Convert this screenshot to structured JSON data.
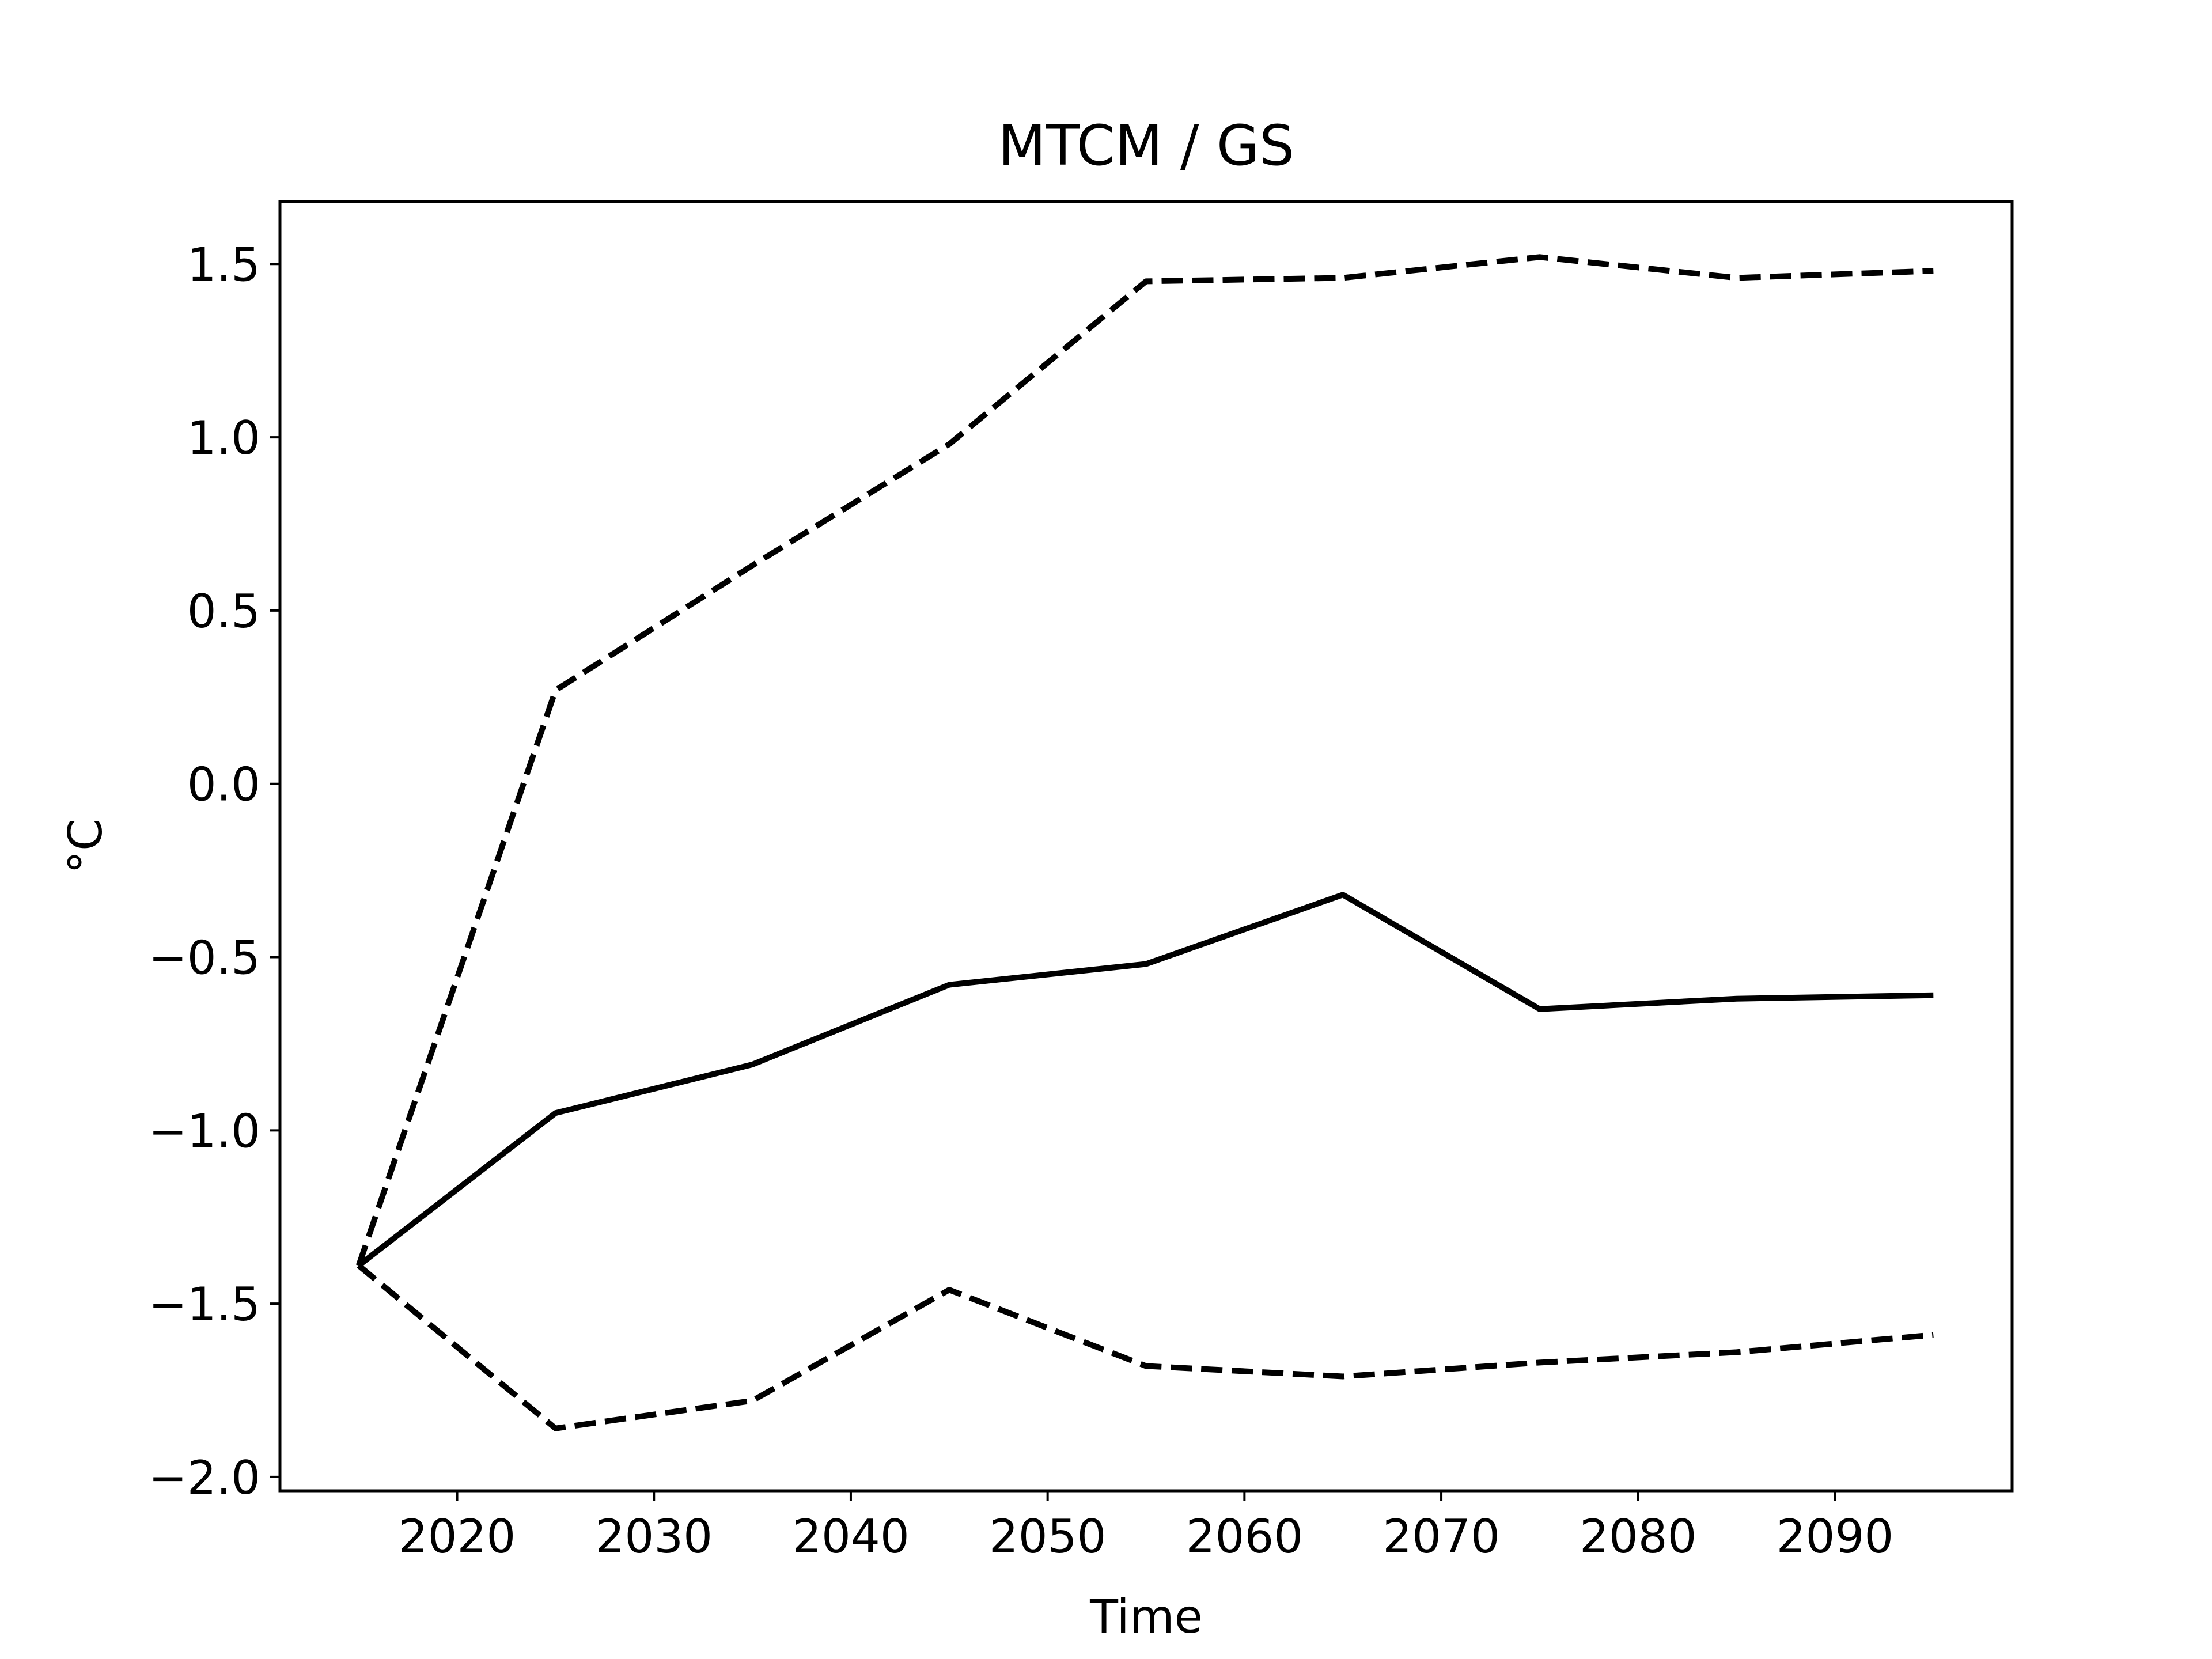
{
  "chart_data": {
    "type": "line",
    "title": "MTCM / GS",
    "xlabel": "Time",
    "ylabel": "°C",
    "xlim": [
      2011,
      2099
    ],
    "ylim": [
      -2.04,
      1.68
    ],
    "x_ticks": [
      2020,
      2030,
      2040,
      2050,
      2060,
      2070,
      2080,
      2090
    ],
    "x_tick_labels": [
      "2020",
      "2030",
      "2040",
      "2050",
      "2060",
      "2070",
      "2080",
      "2090"
    ],
    "y_ticks": [
      -2.0,
      -1.5,
      -1.0,
      -0.5,
      0.0,
      0.5,
      1.0,
      1.5
    ],
    "y_tick_labels": [
      "−2.0",
      "−1.5",
      "−1.0",
      "−0.5",
      "0.0",
      "0.5",
      "1.0",
      "1.5"
    ],
    "grid": false,
    "x": [
      2015,
      2025,
      2035,
      2045,
      2055,
      2065,
      2075,
      2085,
      2095
    ],
    "series": [
      {
        "style": "dashed",
        "color": "#000000",
        "values": [
          -1.39,
          0.27,
          0.63,
          0.98,
          1.45,
          1.46,
          1.52,
          1.46,
          1.48
        ]
      },
      {
        "style": "solid",
        "color": "#000000",
        "values": [
          -1.39,
          -0.95,
          -0.81,
          -0.58,
          -0.52,
          -0.32,
          -0.65,
          -0.62,
          -0.61
        ]
      },
      {
        "style": "dashed",
        "color": "#000000",
        "values": [
          -1.39,
          -1.86,
          -1.78,
          -1.46,
          -1.68,
          -1.71,
          -1.67,
          -1.64,
          -1.59
        ]
      }
    ]
  }
}
